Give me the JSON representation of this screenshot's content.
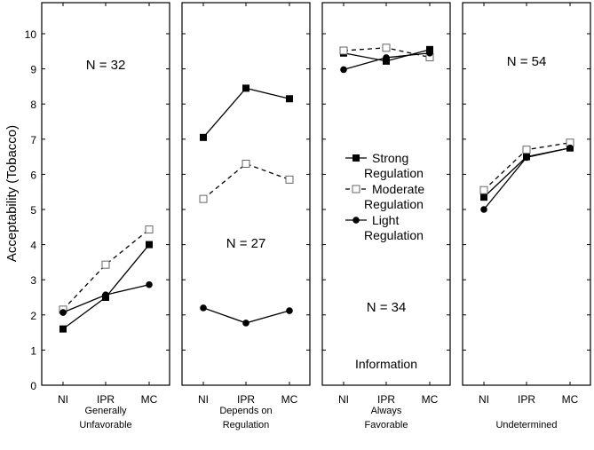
{
  "chart_data": [
    {
      "type": "line",
      "panel_label": [
        "Generally",
        "Unfavorable"
      ],
      "annotation": "N = 32",
      "categories": [
        "NI",
        "IPR",
        "MC"
      ],
      "series": [
        {
          "name": "Strong Regulation",
          "values": [
            1.6,
            2.5,
            4.0
          ]
        },
        {
          "name": "Moderate Regulation",
          "values": [
            2.15,
            3.43,
            4.43
          ]
        },
        {
          "name": "Light Regulation",
          "values": [
            2.07,
            2.57,
            2.86
          ]
        }
      ]
    },
    {
      "type": "line",
      "panel_label": [
        "Depends on",
        "Regulation"
      ],
      "annotation": "N = 27",
      "categories": [
        "NI",
        "IPR",
        "MC"
      ],
      "series": [
        {
          "name": "Strong Regulation",
          "values": [
            7.05,
            8.45,
            8.15
          ]
        },
        {
          "name": "Moderate Regulation",
          "values": [
            5.3,
            6.3,
            5.85
          ]
        },
        {
          "name": "Light Regulation",
          "values": [
            2.2,
            1.77,
            2.12
          ]
        }
      ]
    },
    {
      "type": "line",
      "panel_label": [
        "Always",
        "Favorable"
      ],
      "annotation": "N = 34",
      "annotation2": "Information",
      "categories": [
        "NI",
        "IPR",
        "MC"
      ],
      "series": [
        {
          "name": "Strong Regulation",
          "values": [
            9.45,
            9.22,
            9.55
          ]
        },
        {
          "name": "Moderate Regulation",
          "values": [
            9.52,
            9.6,
            9.33
          ]
        },
        {
          "name": "Light Regulation",
          "values": [
            8.98,
            9.32,
            9.45
          ]
        }
      ]
    },
    {
      "type": "line",
      "panel_label": [
        "",
        "Undetermined"
      ],
      "annotation": "N = 54",
      "categories": [
        "NI",
        "IPR",
        "MC"
      ],
      "series": [
        {
          "name": "Strong Regulation",
          "values": [
            5.35,
            6.5,
            6.75
          ]
        },
        {
          "name": "Moderate Regulation",
          "values": [
            5.55,
            6.7,
            6.9
          ]
        },
        {
          "name": "Light Regulation",
          "values": [
            5.0,
            6.48,
            6.75
          ]
        }
      ]
    }
  ],
  "ylabel": "Acceptability (Tobacco)",
  "ylim": [
    0,
    10.8
  ],
  "yticks": [
    0,
    1,
    2,
    3,
    4,
    5,
    6,
    7,
    8,
    9,
    10
  ],
  "legend": {
    "placement": "panel-3-middle",
    "entries": [
      [
        "Strong",
        "Regulation"
      ],
      [
        "Moderate",
        "Regulation"
      ],
      [
        "Light",
        "Regulation"
      ]
    ]
  },
  "series_styles": {
    "Strong Regulation": {
      "marker": "filled-square",
      "line": "solid"
    },
    "Moderate Regulation": {
      "marker": "open-square",
      "line": "dashed"
    },
    "Light Regulation": {
      "marker": "filled-circle",
      "line": "solid"
    }
  }
}
